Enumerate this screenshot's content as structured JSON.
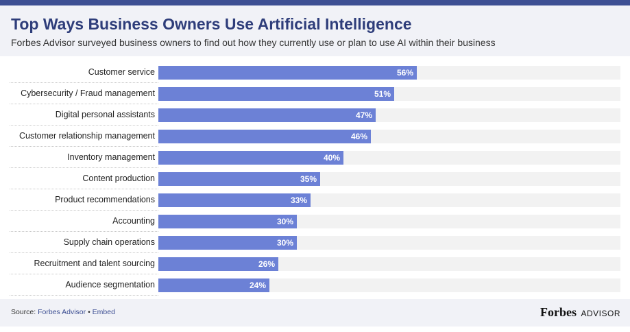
{
  "header": {
    "title": "Top Ways Business Owners Use Artificial Intelligence",
    "subtitle": "Forbes Advisor surveyed business owners to find out how they currently use or plan to use AI within their business"
  },
  "chart_data": {
    "type": "bar",
    "orientation": "horizontal",
    "title": "Top Ways Business Owners Use Artificial Intelligence",
    "xlim": [
      0,
      100
    ],
    "unit": "%",
    "categories": [
      "Customer service",
      "Cybersecurity / Fraud management",
      "Digital personal assistants",
      "Customer relationship management",
      "Inventory management",
      "Content production",
      "Product recommendations",
      "Accounting",
      "Supply chain operations",
      "Recruitment and talent sourcing",
      "Audience segmentation"
    ],
    "values": [
      56,
      51,
      47,
      46,
      40,
      35,
      33,
      30,
      30,
      26,
      24
    ],
    "value_labels": [
      "56%",
      "51%",
      "47%",
      "46%",
      "40%",
      "35%",
      "33%",
      "30%",
      "30%",
      "26%",
      "24%"
    ],
    "bar_color": "#6c81d6",
    "track_color": "#f2f2f2"
  },
  "footer": {
    "source_prefix": "Source:",
    "source_name": "Forbes Advisor",
    "separator": "•",
    "embed": "Embed",
    "logo_main": "Forbes",
    "logo_sub": "ADVISOR"
  },
  "colors": {
    "topbar": "#3d4f93",
    "title": "#2e3d7a",
    "header_bg": "#f1f2f7"
  }
}
